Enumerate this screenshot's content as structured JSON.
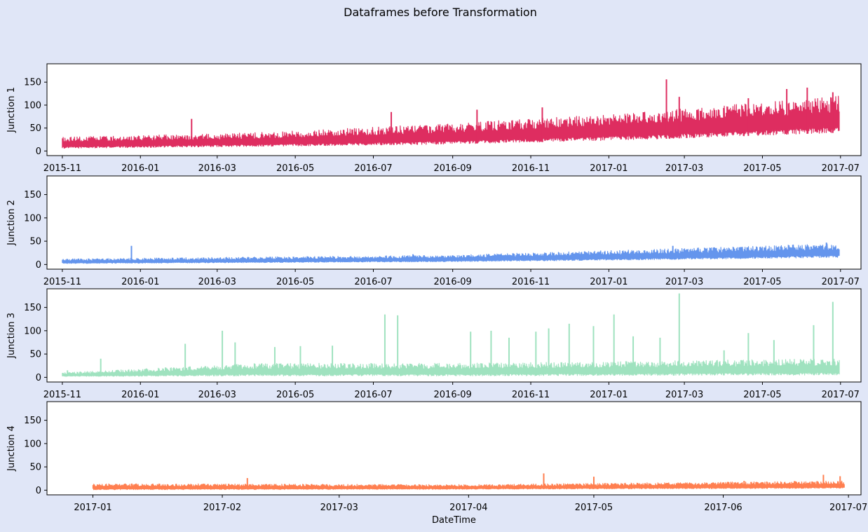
{
  "title": "Dataframes before Transformation",
  "chart_data": [
    {
      "type": "line",
      "ylabel": "Junction 1",
      "xlabel": "",
      "color": "#de2d60",
      "ylim": [
        -10,
        190
      ],
      "yticks": [
        0,
        50,
        100,
        150
      ],
      "xlim": [
        "2015-10-20",
        "2017-07-17"
      ],
      "xticks": [
        "2015-11-01",
        "2016-01-01",
        "2016-03-01",
        "2016-05-01",
        "2016-07-01",
        "2016-09-01",
        "2016-11-01",
        "2017-01-01",
        "2017-03-01",
        "2017-05-01",
        "2017-07-01"
      ],
      "xtick_labels": [
        "2015-11",
        "2016-01",
        "2016-03",
        "2016-05",
        "2016-07",
        "2016-09",
        "2016-11",
        "2017-01",
        "2017-03",
        "2017-05",
        "2017-07"
      ],
      "series": [
        {
          "x_start": "2015-11-01",
          "x_end": "2017-06-30",
          "trend_low": [
            [
              0,
              6
            ],
            [
              0.25,
              10
            ],
            [
              0.5,
              15
            ],
            [
              0.75,
              25
            ],
            [
              1,
              40
            ]
          ],
          "trend_high": [
            [
              0,
              30
            ],
            [
              0.25,
              40
            ],
            [
              0.5,
              60
            ],
            [
              0.75,
              85
            ],
            [
              1,
              120
            ]
          ],
          "spikes": [
            [
              "2016-02-10",
              70
            ],
            [
              "2016-07-15",
              85
            ],
            [
              "2016-09-20",
              90
            ],
            [
              "2016-11-10",
              95
            ],
            [
              "2017-02-15",
              156
            ],
            [
              "2017-02-25",
              118
            ],
            [
              "2017-04-20",
              115
            ],
            [
              "2017-05-20",
              135
            ],
            [
              "2017-06-05",
              138
            ],
            [
              "2017-06-25",
              128
            ]
          ]
        }
      ]
    },
    {
      "type": "line",
      "ylabel": "Junction 2",
      "xlabel": "",
      "color": "#6495ed",
      "ylim": [
        -10,
        190
      ],
      "yticks": [
        0,
        50,
        100,
        150
      ],
      "xlim": [
        "2015-10-20",
        "2017-07-17"
      ],
      "xticks": [
        "2015-11-01",
        "2016-01-01",
        "2016-03-01",
        "2016-05-01",
        "2016-07-01",
        "2016-09-01",
        "2016-11-01",
        "2017-01-01",
        "2017-03-01",
        "2017-05-01",
        "2017-07-01"
      ],
      "xtick_labels": [
        "2015-11",
        "2016-01",
        "2016-03",
        "2016-05",
        "2016-07",
        "2016-09",
        "2016-11",
        "2017-01",
        "2017-03",
        "2017-05",
        "2017-07"
      ],
      "series": [
        {
          "x_start": "2015-11-01",
          "x_end": "2017-06-30",
          "trend_low": [
            [
              0,
              2
            ],
            [
              0.25,
              4
            ],
            [
              0.5,
              6
            ],
            [
              0.75,
              10
            ],
            [
              1,
              15
            ]
          ],
          "trend_high": [
            [
              0,
              12
            ],
            [
              0.25,
              16
            ],
            [
              0.5,
              20
            ],
            [
              0.75,
              32
            ],
            [
              1,
              45
            ]
          ],
          "spikes": [
            [
              "2015-12-25",
              40
            ],
            [
              "2016-08-01",
              22
            ],
            [
              "2017-02-20",
              40
            ],
            [
              "2017-06-20",
              47
            ]
          ]
        }
      ]
    },
    {
      "type": "line",
      "ylabel": "Junction 3",
      "xlabel": "",
      "color": "#9fe2bf",
      "ylim": [
        -10,
        190
      ],
      "yticks": [
        0,
        50,
        100,
        150
      ],
      "xlim": [
        "2015-10-20",
        "2017-07-17"
      ],
      "xticks": [
        "2015-11-01",
        "2016-01-01",
        "2016-03-01",
        "2016-05-01",
        "2016-07-01",
        "2016-09-01",
        "2016-11-01",
        "2017-01-01",
        "2017-03-01",
        "2017-05-01",
        "2017-07-01"
      ],
      "xtick_labels": [
        "2015-11",
        "2016-01",
        "2016-03",
        "2016-05",
        "2016-07",
        "2016-09",
        "2016-11",
        "2017-01",
        "2017-03",
        "2017-05",
        "2017-07"
      ],
      "series": [
        {
          "x_start": "2015-11-01",
          "x_end": "2017-06-30",
          "trend_low": [
            [
              0,
              2
            ],
            [
              0.25,
              3
            ],
            [
              0.5,
              3
            ],
            [
              0.75,
              4
            ],
            [
              1,
              5
            ]
          ],
          "trend_high": [
            [
              0,
              10
            ],
            [
              0.25,
              30
            ],
            [
              0.5,
              30
            ],
            [
              0.75,
              35
            ],
            [
              1,
              40
            ]
          ],
          "spikes": [
            [
              "2015-11-05",
              15
            ],
            [
              "2015-12-01",
              40
            ],
            [
              "2016-02-05",
              72
            ],
            [
              "2016-03-05",
              100
            ],
            [
              "2016-03-15",
              75
            ],
            [
              "2016-04-15",
              65
            ],
            [
              "2016-05-05",
              67
            ],
            [
              "2016-05-30",
              68
            ],
            [
              "2016-07-10",
              135
            ],
            [
              "2016-07-20",
              133
            ],
            [
              "2016-09-15",
              98
            ],
            [
              "2016-10-01",
              100
            ],
            [
              "2016-10-15",
              85
            ],
            [
              "2016-11-05",
              98
            ],
            [
              "2016-11-15",
              105
            ],
            [
              "2016-12-01",
              115
            ],
            [
              "2016-12-20",
              110
            ],
            [
              "2017-01-05",
              135
            ],
            [
              "2017-01-20",
              88
            ],
            [
              "2017-02-10",
              85
            ],
            [
              "2017-02-25",
              180
            ],
            [
              "2017-04-01",
              58
            ],
            [
              "2017-04-20",
              95
            ],
            [
              "2017-05-10",
              80
            ],
            [
              "2017-06-10",
              112
            ],
            [
              "2017-06-25",
              162
            ]
          ]
        }
      ]
    },
    {
      "type": "line",
      "ylabel": "Junction 4",
      "xlabel": "DateTime",
      "color": "#ff7f50",
      "ylim": [
        -10,
        190
      ],
      "yticks": [
        0,
        50,
        100,
        150
      ],
      "xlim": [
        "2016-12-21",
        "2017-07-04"
      ],
      "xticks": [
        "2017-01-01",
        "2017-02-01",
        "2017-03-01",
        "2017-04-01",
        "2017-05-01",
        "2017-06-01",
        "2017-07-01"
      ],
      "xtick_labels": [
        "2017-01",
        "2017-02",
        "2017-03",
        "2017-04",
        "2017-05",
        "2017-06",
        "2017-07"
      ],
      "series": [
        {
          "x_start": "2017-01-01",
          "x_end": "2017-06-30",
          "trend_low": [
            [
              0,
              1
            ],
            [
              0.5,
              2
            ],
            [
              1,
              4
            ]
          ],
          "trend_high": [
            [
              0,
              14
            ],
            [
              0.5,
              12
            ],
            [
              1,
              20
            ]
          ],
          "spikes": [
            [
              "2017-02-07",
              26
            ],
            [
              "2017-04-19",
              36
            ],
            [
              "2017-05-01",
              29
            ],
            [
              "2017-06-06",
              20
            ],
            [
              "2017-06-25",
              33
            ],
            [
              "2017-06-29",
              30
            ]
          ]
        }
      ]
    }
  ]
}
